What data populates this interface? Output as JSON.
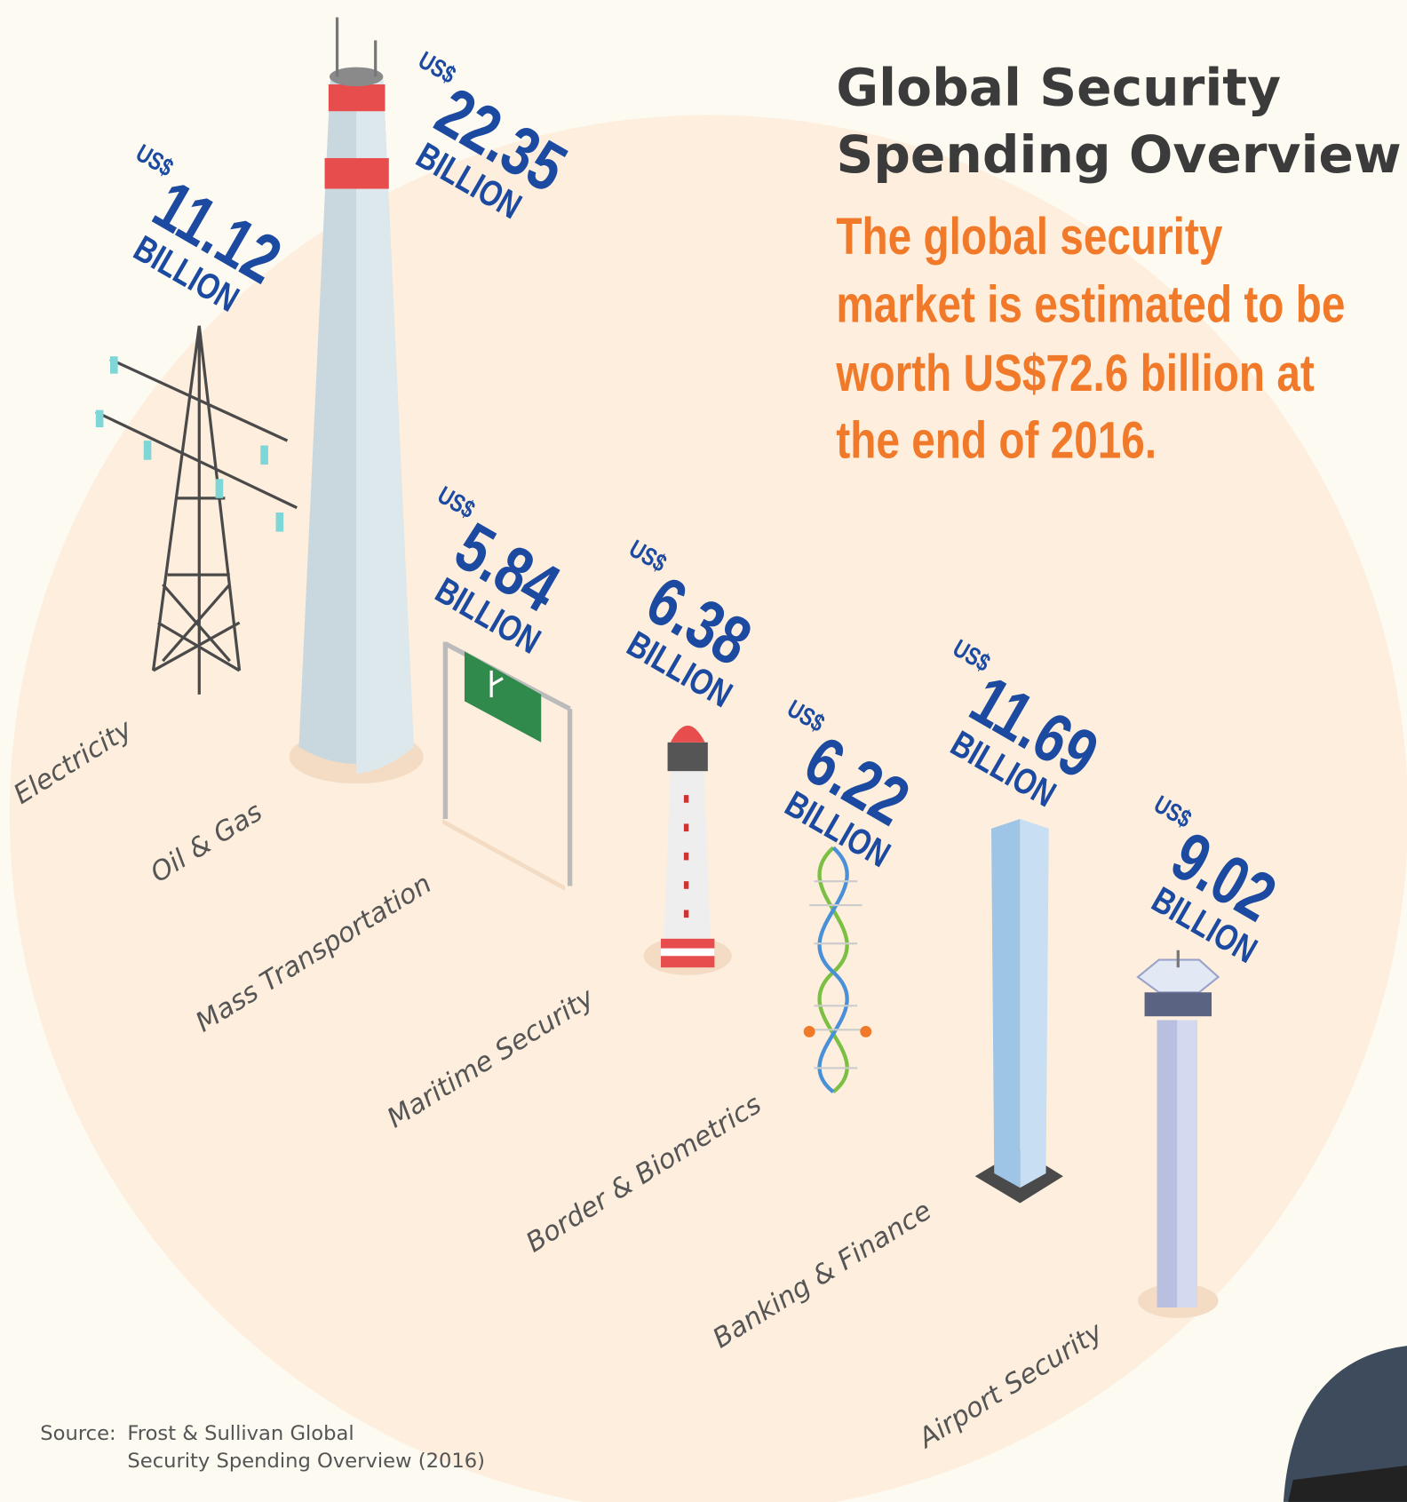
{
  "header": {
    "title": [
      "Global Security",
      "Spending Overview"
    ],
    "subtitle": [
      "The global security",
      "market is estimated to be",
      "worth US$72.6 billion at",
      "the end of 2016."
    ]
  },
  "items": [
    {
      "currency": "US$",
      "amount": "11.12",
      "unit": "BILLION",
      "label": "Electricity"
    },
    {
      "currency": "US$",
      "amount": "22.35",
      "unit": "BILLION",
      "label": "Oil & Gas"
    },
    {
      "currency": "US$",
      "amount": "5.84",
      "unit": "BILLION",
      "label": "Mass Transportation"
    },
    {
      "currency": "US$",
      "amount": "6.38",
      "unit": "BILLION",
      "label": "Maritime Security"
    },
    {
      "currency": "US$",
      "amount": "6.22",
      "unit": "BILLION",
      "label": "Border & Biometrics"
    },
    {
      "currency": "US$",
      "amount": "11.69",
      "unit": "BILLION",
      "label": "Banking & Finance"
    },
    {
      "currency": "US$",
      "amount": "9.02",
      "unit": "BILLION",
      "label": "Airport Security"
    }
  ],
  "source": {
    "prefix": "Source:",
    "lines": [
      "Frost & Sullivan Global",
      "Security Spending Overview (2016)"
    ]
  }
}
